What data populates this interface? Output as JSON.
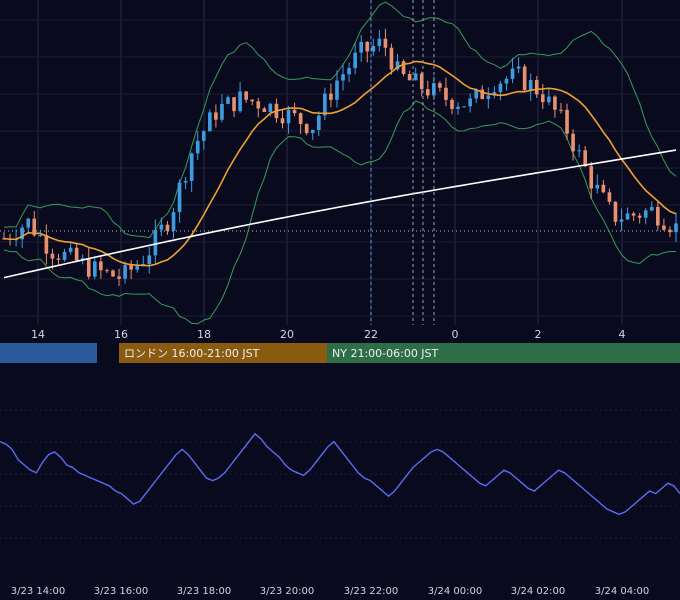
{
  "colors": {
    "background": "#0a0a1f",
    "grid": "#2a2a45",
    "candle_up": "#3d9ce0",
    "candle_down": "#e9906f",
    "ma_short": "#f0a030",
    "ma_long": "#ffffff",
    "bollinger": "#3a9a55",
    "oscillator": "#5b6cf0",
    "session_tokyo": "#2a5a9a",
    "session_london": "#8a5a10",
    "session_ny": "#2e6e46"
  },
  "sessions": [
    {
      "key": "tokyo",
      "label": ""
    },
    {
      "key": "london",
      "label": "ロンドン 16:00-21:00 JST"
    },
    {
      "key": "ny",
      "label": "NY 21:00-06:00 JST"
    }
  ],
  "chart_data": [
    {
      "type": "candlestick",
      "title": "",
      "x_tick_labels": [
        "14",
        "16",
        "18",
        "20",
        "22",
        "0",
        "2",
        "4"
      ],
      "price_range": [
        0,
        100
      ],
      "candles": [],
      "overlays": [
        "moving_average_short",
        "moving_average_long",
        "bollinger_bands"
      ]
    },
    {
      "type": "line",
      "title": "",
      "x_tick_labels": [
        "3/23 14:00",
        "3/23 16:00",
        "3/23 18:00",
        "3/23 20:00",
        "3/23 22:00",
        "3/24 00:00",
        "3/24 02:00",
        "3/24 04:00"
      ],
      "series": [
        {
          "values": [
            68,
            66,
            62,
            54,
            50,
            46,
            44,
            52,
            58,
            60,
            56,
            50,
            48,
            44,
            42,
            40,
            38,
            36,
            34,
            30,
            28,
            24,
            20,
            22,
            28,
            34,
            40,
            46,
            52,
            58,
            62,
            58,
            52,
            46,
            40,
            38,
            40,
            44,
            50,
            56,
            62,
            68,
            74,
            70,
            64,
            60,
            56,
            50,
            46,
            44,
            42,
            46,
            52,
            58,
            64,
            68,
            62,
            56,
            50,
            44,
            40,
            38,
            34,
            30,
            26,
            30,
            36,
            42,
            48,
            52,
            56,
            60,
            62,
            60,
            56,
            52,
            48,
            44,
            40,
            36,
            34,
            38,
            42,
            46,
            44,
            40,
            36,
            32,
            30,
            34,
            38,
            42,
            46,
            44,
            40,
            36,
            32,
            28,
            24,
            20,
            16,
            14,
            12,
            14,
            18,
            22,
            26,
            30,
            28,
            32,
            36,
            34,
            28
          ]
        }
      ]
    }
  ]
}
